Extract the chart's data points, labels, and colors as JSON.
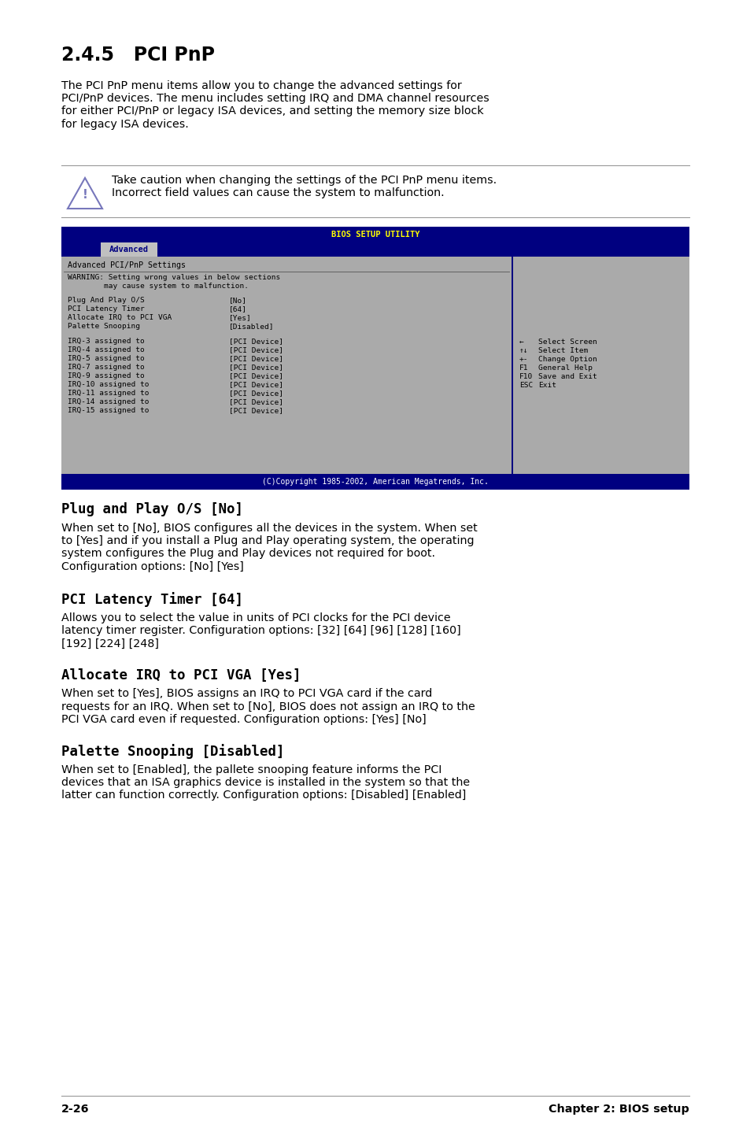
{
  "bg_color": "#ffffff",
  "section_title": "2.4.5   PCI PnP",
  "intro_text": "The PCI PnP menu items allow you to change the advanced settings for\nPCI/PnP devices. The menu includes setting IRQ and DMA channel resources\nfor either PCI/PnP or legacy ISA devices, and setting the memory size block\nfor legacy ISA devices.",
  "caution_text": "Take caution when changing the settings of the PCI PnP menu items.\nIncorrect field values can cause the system to malfunction.",
  "bios_header": "BIOS SETUP UTILITY",
  "bios_tab": "Advanced",
  "bios_subtitle": "Advanced PCI/PnP Settings",
  "bios_warning_line1": "WARNING: Setting wrong values in below sections",
  "bios_warning_line2": "        may cause system to malfunction.",
  "bios_settings": [
    [
      "Plug And Play O/S",
      "[No]"
    ],
    [
      "PCI Latency Timer",
      "[64]"
    ],
    [
      "Allocate IRQ to PCI VGA",
      "[Yes]"
    ],
    [
      "Palette Snooping",
      "[Disabled]"
    ]
  ],
  "bios_irq": [
    [
      "IRQ-3 assigned to",
      "[PCI Device]"
    ],
    [
      "IRQ-4 assigned to",
      "[PCI Device]"
    ],
    [
      "IRQ-5 assigned to",
      "[PCI Device]"
    ],
    [
      "IRQ-7 assigned to",
      "[PCI Device]"
    ],
    [
      "IRQ-9 assigned to",
      "[PCI Device]"
    ],
    [
      "IRQ-10 assigned to",
      "[PCI Device]"
    ],
    [
      "IRQ-11 assigned to",
      "[PCI Device]"
    ],
    [
      "IRQ-14 assigned to",
      "[PCI Device]"
    ],
    [
      "IRQ-15 assigned to",
      "[PCI Device]"
    ]
  ],
  "bios_nav": [
    [
      "←",
      "Select Screen"
    ],
    [
      "↑↓",
      "Select Item"
    ],
    [
      "+-",
      "Change Option"
    ],
    [
      "F1",
      "General Help"
    ],
    [
      "F10",
      "Save and Exit"
    ],
    [
      "ESC",
      "Exit"
    ]
  ],
  "bios_footer": "(C)Copyright 1985-2002, American Megatrends, Inc.",
  "bios_bg": "#000080",
  "bios_header_fg": "#ffff00",
  "bios_tab_bg": "#c0c0c0",
  "bios_tab_fg": "#000080",
  "bios_main_bg": "#aaaaaa",
  "bios_footer_fg": "#ffffff",
  "sub_sections": [
    {
      "title": "Plug and Play O/S [No]",
      "body": "When set to [No], BIOS configures all the devices in the system. When set\nto [Yes] and if you install a Plug and Play operating system, the operating\nsystem configures the Plug and Play devices not required for boot.\nConfiguration options: [No] [Yes]"
    },
    {
      "title": "PCI Latency Timer [64]",
      "body": "Allows you to select the value in units of PCI clocks for the PCI device\nlatency timer register. Configuration options: [32] [64] [96] [128] [160]\n[192] [224] [248]"
    },
    {
      "title": "Allocate IRQ to PCI VGA [Yes]",
      "body": "When set to [Yes], BIOS assigns an IRQ to PCI VGA card if the card\nrequests for an IRQ. When set to [No], BIOS does not assign an IRQ to the\nPCI VGA card even if requested. Configuration options: [Yes] [No]"
    },
    {
      "title": "Palette Snooping [Disabled]",
      "body": "When set to [Enabled], the pallete snooping feature informs the PCI\ndevices that an ISA graphics device is installed in the system so that the\nlatter can function correctly. Configuration options: [Disabled] [Enabled]"
    }
  ],
  "footer_left": "2-26",
  "footer_right": "Chapter 2: BIOS setup"
}
